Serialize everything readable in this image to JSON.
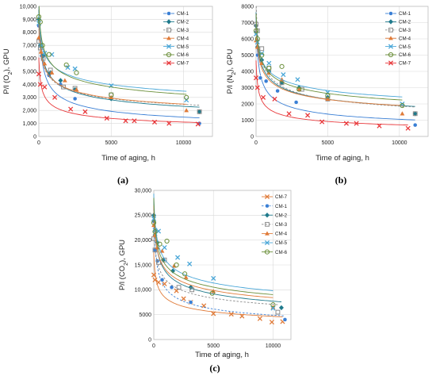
{
  "chart_data": [
    {
      "type": "scatter",
      "panel_label": "(a)",
      "ylabel_parts": [
        "P/l (O",
        "2",
        "), GPU"
      ],
      "xlabel": "Time of aging, h",
      "xlim": [
        0,
        12000
      ],
      "ylim": [
        0,
        10000
      ],
      "xticks": [
        0,
        5000,
        10000
      ],
      "xtick_labels": [
        "0",
        "5000",
        "10000"
      ],
      "yticks": [
        0,
        1000,
        2000,
        3000,
        4000,
        5000,
        6000,
        7000,
        8000,
        9000,
        10000
      ],
      "ytick_labels": [
        "0",
        "1,000",
        "2,000",
        "3,000",
        "4,000",
        "5,000",
        "6,000",
        "7,000",
        "8,000",
        "9,000",
        "10,000"
      ],
      "legend_position": "top-right",
      "series": [
        {
          "name": "CM-1",
          "color": "#3a7fd5",
          "marker": "circle",
          "line": "solid",
          "points": [
            [
              0,
              8500
            ],
            [
              80,
              7500
            ],
            [
              200,
              6200
            ],
            [
              700,
              4700
            ],
            [
              1500,
              4000
            ],
            [
              2500,
              2900
            ],
            [
              11100,
              1000
            ]
          ]
        },
        {
          "name": "CM-2",
          "color": "#1f7a8c",
          "marker": "diamond",
          "line": "solid",
          "points": [
            [
              0,
              9000
            ],
            [
              100,
              7000
            ],
            [
              300,
              6200
            ],
            [
              800,
              4900
            ],
            [
              1500,
              4300
            ],
            [
              2500,
              3600
            ],
            [
              5000,
              2900
            ],
            [
              11100,
              1900
            ]
          ]
        },
        {
          "name": "CM-3",
          "color": "#8a8a8a",
          "marker": "square",
          "line": "dashed",
          "points": [
            [
              0,
              7300
            ],
            [
              100,
              6800
            ],
            [
              300,
              6000
            ],
            [
              800,
              5100
            ],
            [
              1700,
              3800
            ],
            [
              2500,
              3700
            ],
            [
              5000,
              3200
            ],
            [
              11100,
              1900
            ]
          ]
        },
        {
          "name": "CM-4",
          "color": "#e07b39",
          "marker": "triangle",
          "line": "solid",
          "points": [
            [
              0,
              7600
            ],
            [
              150,
              6500
            ],
            [
              400,
              5600
            ],
            [
              900,
              4900
            ],
            [
              1800,
              4300
            ],
            [
              2600,
              3600
            ],
            [
              5000,
              3000
            ],
            [
              10200,
              2000
            ]
          ]
        },
        {
          "name": "CM-5",
          "color": "#4aa7d8",
          "marker": "x",
          "line": "solid",
          "points": [
            [
              0,
              8700
            ],
            [
              150,
              7000
            ],
            [
              400,
              6400
            ],
            [
              900,
              6300
            ],
            [
              2000,
              5300
            ],
            [
              2500,
              5200
            ],
            [
              5000,
              3900
            ],
            [
              10200,
              2800
            ]
          ]
        },
        {
          "name": "CM-6",
          "color": "#6b8f3a",
          "marker": "circle-open",
          "line": "solid",
          "points": [
            [
              0,
              9200
            ],
            [
              100,
              8800
            ],
            [
              250,
              7000
            ],
            [
              700,
              6300
            ],
            [
              1900,
              5500
            ],
            [
              2600,
              4900
            ],
            [
              5000,
              3200
            ],
            [
              10200,
              3000
            ]
          ]
        },
        {
          "name": "CM-7",
          "color": "#e8393c",
          "marker": "x",
          "line": "solid",
          "points": [
            [
              0,
              4800
            ],
            [
              100,
              4000
            ],
            [
              400,
              3800
            ],
            [
              1100,
              3000
            ],
            [
              2200,
              2100
            ],
            [
              3200,
              1900
            ],
            [
              4700,
              1400
            ],
            [
              6000,
              1200
            ],
            [
              6600,
              1200
            ],
            [
              8000,
              1100
            ],
            [
              9000,
              1000
            ],
            [
              11000,
              950
            ]
          ]
        }
      ]
    },
    {
      "type": "scatter",
      "panel_label": "(b)",
      "ylabel_parts": [
        "P/l (N",
        "2",
        "), GPU"
      ],
      "xlabel": "Time of aging, h",
      "xlim": [
        0,
        12000
      ],
      "ylim": [
        0,
        8000
      ],
      "xticks": [
        0,
        5000,
        10000
      ],
      "xtick_labels": [
        "0",
        "5000",
        "10000"
      ],
      "yticks": [
        0,
        1000,
        2000,
        3000,
        4000,
        5000,
        6000,
        7000,
        8000
      ],
      "ytick_labels": [
        "0",
        "1000",
        "2000",
        "3000",
        "4000",
        "5000",
        "6000",
        "7000",
        "8000"
      ],
      "legend_position": "top-right",
      "series": [
        {
          "name": "CM-1",
          "color": "#3a7fd5",
          "marker": "circle",
          "line": "solid",
          "points": [
            [
              0,
              6400
            ],
            [
              100,
              5000
            ],
            [
              300,
              3600
            ],
            [
              700,
              3400
            ],
            [
              1500,
              2800
            ],
            [
              2800,
              2100
            ],
            [
              11100,
              700
            ]
          ]
        },
        {
          "name": "CM-2",
          "color": "#1f7a8c",
          "marker": "diamond",
          "line": "solid",
          "points": [
            [
              0,
              6800
            ],
            [
              100,
              5500
            ],
            [
              400,
              4700
            ],
            [
              900,
              4000
            ],
            [
              1800,
              3300
            ],
            [
              3000,
              3000
            ],
            [
              5000,
              2400
            ],
            [
              11100,
              1400
            ]
          ]
        },
        {
          "name": "CM-3",
          "color": "#8a8a8a",
          "marker": "square",
          "line": "dashed",
          "points": [
            [
              0,
              6900
            ],
            [
              100,
              6500
            ],
            [
              400,
              5400
            ],
            [
              900,
              4200
            ],
            [
              1800,
              3300
            ],
            [
              3200,
              2900
            ],
            [
              5000,
              2300
            ],
            [
              11100,
              1400
            ]
          ]
        },
        {
          "name": "CM-4",
          "color": "#e07b39",
          "marker": "triangle",
          "line": "solid",
          "points": [
            [
              0,
              5900
            ],
            [
              100,
              5500
            ],
            [
              400,
              4500
            ],
            [
              900,
              3900
            ],
            [
              1800,
              3500
            ],
            [
              3000,
              2900
            ],
            [
              5000,
              2300
            ],
            [
              10200,
              1400
            ]
          ]
        },
        {
          "name": "CM-5",
          "color": "#4aa7d8",
          "marker": "x",
          "line": "solid",
          "points": [
            [
              0,
              6300
            ],
            [
              100,
              5800
            ],
            [
              400,
              5100
            ],
            [
              900,
              4500
            ],
            [
              1900,
              3800
            ],
            [
              2900,
              3500
            ],
            [
              5000,
              2700
            ],
            [
              10200,
              2000
            ]
          ]
        },
        {
          "name": "CM-6",
          "color": "#6b8f3a",
          "marker": "circle-open",
          "line": "solid",
          "points": [
            [
              0,
              6500
            ],
            [
              100,
              6000
            ],
            [
              400,
              5000
            ],
            [
              900,
              4200
            ],
            [
              1800,
              4300
            ],
            [
              3000,
              2900
            ],
            [
              5000,
              2500
            ],
            [
              10200,
              1900
            ]
          ]
        },
        {
          "name": "CM-7",
          "color": "#e8393c",
          "marker": "x",
          "line": "solid",
          "points": [
            [
              0,
              3600
            ],
            [
              100,
              3000
            ],
            [
              500,
              2400
            ],
            [
              1300,
              2300
            ],
            [
              2300,
              1400
            ],
            [
              3600,
              1300
            ],
            [
              4600,
              900
            ],
            [
              6300,
              800
            ],
            [
              7000,
              800
            ],
            [
              8600,
              650
            ],
            [
              10600,
              500
            ]
          ]
        }
      ]
    },
    {
      "type": "scatter",
      "panel_label": "(c)",
      "ylabel_parts": [
        "P/l (CO",
        "2",
        "), GPU"
      ],
      "xlabel": "Time of aging, h",
      "xlim": [
        0,
        11500
      ],
      "ylim": [
        0,
        30000
      ],
      "xticks": [
        0,
        5000,
        10000
      ],
      "xtick_labels": [
        "0",
        "5000",
        "10000"
      ],
      "yticks": [
        0,
        5000,
        10000,
        15000,
        20000,
        25000,
        30000
      ],
      "ytick_labels": [
        "0",
        "5000",
        "10,000",
        "15,000",
        "20,000",
        "25,000",
        "30,000"
      ],
      "legend_position": "top-right",
      "series": [
        {
          "name": "CM-7",
          "color": "#e07b39",
          "marker": "x",
          "line": "solid",
          "points": [
            [
              0,
              13000
            ],
            [
              100,
              12000
            ],
            [
              400,
              11500
            ],
            [
              900,
              11200
            ],
            [
              1900,
              9800
            ],
            [
              2500,
              8200
            ],
            [
              3100,
              7500
            ],
            [
              4200,
              6800
            ],
            [
              5000,
              5200
            ],
            [
              6500,
              5100
            ],
            [
              7400,
              4700
            ],
            [
              8900,
              4200
            ],
            [
              9900,
              3500
            ],
            [
              10800,
              3600
            ]
          ]
        },
        {
          "name": "CM-1",
          "color": "#3a7fd5",
          "marker": "circle",
          "line": "dashed",
          "points": [
            [
              0,
              23800
            ],
            [
              100,
              18000
            ],
            [
              300,
              15800
            ],
            [
              700,
              12000
            ],
            [
              1500,
              10500
            ],
            [
              3100,
              7500
            ],
            [
              11000,
              4000
            ]
          ]
        },
        {
          "name": "CM-2",
          "color": "#1f7a8c",
          "marker": "diamond",
          "line": "solid",
          "points": [
            [
              0,
              25000
            ],
            [
              100,
              21000
            ],
            [
              300,
              19500
            ],
            [
              800,
              16000
            ],
            [
              1600,
              13800
            ],
            [
              3100,
              10500
            ],
            [
              10700,
              6400
            ]
          ]
        },
        {
          "name": "CM-3",
          "color": "#8a8a8a",
          "marker": "square",
          "line": "dashed",
          "points": [
            [
              0,
              20300
            ],
            [
              100,
              18000
            ],
            [
              400,
              15500
            ],
            [
              900,
              16000
            ],
            [
              2100,
              10500
            ],
            [
              3200,
              10000
            ],
            [
              10400,
              5500
            ]
          ]
        },
        {
          "name": "CM-4",
          "color": "#e07b39",
          "marker": "triangle",
          "line": "solid",
          "points": [
            [
              0,
              23000
            ],
            [
              100,
              21000
            ],
            [
              300,
              18500
            ],
            [
              700,
              17800
            ],
            [
              1700,
              14800
            ],
            [
              2700,
              12500
            ],
            [
              5000,
              9700
            ],
            [
              10000,
              6500
            ]
          ]
        },
        {
          "name": "CM-5",
          "color": "#4aa7d8",
          "marker": "x",
          "line": "solid",
          "points": [
            [
              0,
              24300
            ],
            [
              100,
              22000
            ],
            [
              400,
              21800
            ],
            [
              900,
              18500
            ],
            [
              2000,
              16500
            ],
            [
              3000,
              15200
            ],
            [
              5000,
              12300
            ],
            [
              10000,
              6300
            ]
          ]
        },
        {
          "name": "CM-6",
          "color": "#6b8f3a",
          "marker": "circle-open",
          "line": "solid",
          "points": [
            [
              0,
              23500
            ],
            [
              100,
              21700
            ],
            [
              500,
              19200
            ],
            [
              1100,
              19800
            ],
            [
              1900,
              15000
            ],
            [
              2600,
              13200
            ],
            [
              4900,
              9300
            ],
            [
              10000,
              7000
            ]
          ]
        }
      ]
    }
  ]
}
